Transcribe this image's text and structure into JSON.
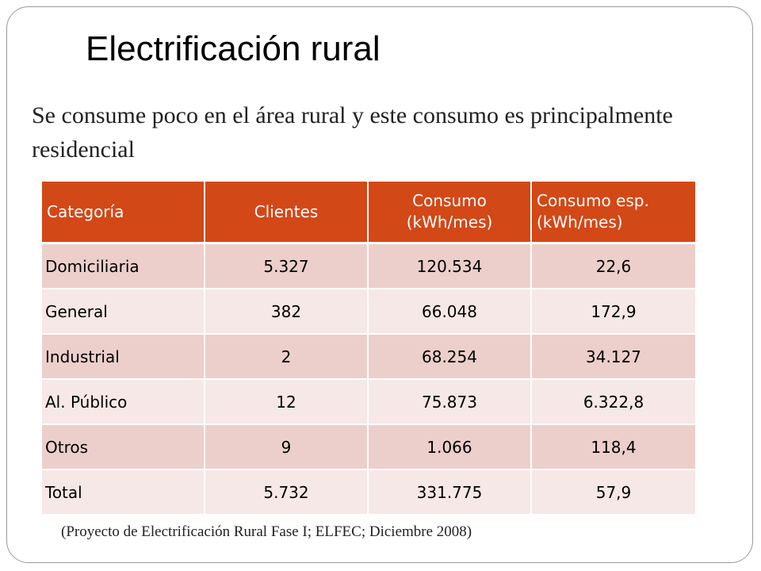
{
  "slide": {
    "title": "Electrificación rural",
    "subtitle": "Se consume poco en el área rural y este consumo es principalmente residencial",
    "source": "(Proyecto de Electrificación Rural Fase I; ELFEC; Diciembre 2008)"
  },
  "table": {
    "headers": [
      "Categoría",
      "Clientes",
      "Consumo (kWh/mes)",
      "Consumo esp. (kWh/mes)"
    ],
    "rows": [
      [
        "Domiciliaria",
        "5.327",
        "120.534",
        "22,6"
      ],
      [
        "General",
        "382",
        "66.048",
        "172,9"
      ],
      [
        "Industrial",
        "2",
        "68.254",
        "34.127"
      ],
      [
        "Al. Público",
        "12",
        "75.873",
        "6.322,8"
      ],
      [
        "Otros",
        "9",
        "1.066",
        "118,4"
      ],
      [
        "Total",
        "5.732",
        "331.775",
        "57,9"
      ]
    ]
  },
  "colors": {
    "header_bg": "#d34817",
    "row_odd": "#eccfcb",
    "row_even": "#f6e8e6"
  }
}
